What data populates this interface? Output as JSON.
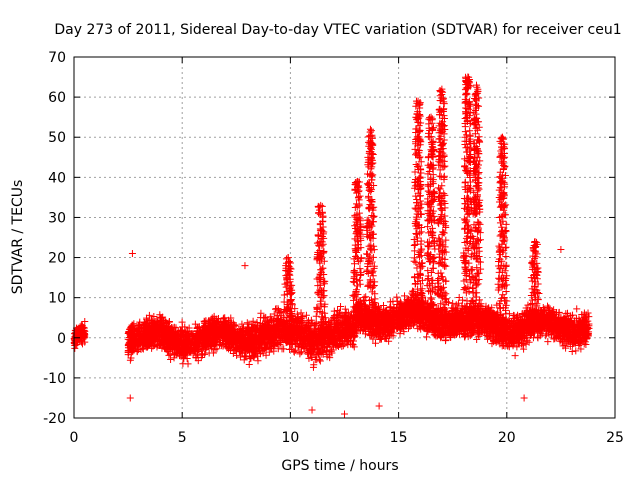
{
  "chart_data": {
    "type": "scatter",
    "title": "Day 273 of 2011, Sidereal Day-to-day VTEC variation (SDTVAR) for receiver ceu1",
    "xlabel": "GPS time / hours",
    "ylabel": "SDTVAR / TECUs",
    "xlim": [
      0,
      25
    ],
    "ylim": [
      -20,
      70
    ],
    "x_ticks": [
      0,
      5,
      10,
      15,
      20,
      25
    ],
    "y_ticks": [
      -20,
      -10,
      0,
      10,
      20,
      30,
      40,
      50,
      60,
      70
    ],
    "x_tick_labels": [
      "0",
      "5",
      "10",
      "15",
      "20",
      "25"
    ],
    "y_tick_labels": [
      "-20",
      "-10",
      "0",
      "10",
      "20",
      "30",
      "40",
      "50",
      "60",
      "70"
    ],
    "grid": true,
    "marker": "+",
    "marker_color": "#ff0000",
    "series": [
      {
        "name": "SDTVAR",
        "segments": [
          {
            "x_start": 0.0,
            "x_end": 0.5,
            "center": 0,
            "spread": 3
          },
          {
            "x_start": 2.5,
            "x_end": 8.0,
            "center": 0,
            "spread": 5
          },
          {
            "x_start": 8.0,
            "x_end": 13.0,
            "center": 1,
            "spread": 6
          },
          {
            "x_start": 13.0,
            "x_end": 18.0,
            "center": 5,
            "spread": 5
          },
          {
            "x_start": 18.0,
            "x_end": 23.8,
            "center": 3,
            "spread": 5
          }
        ],
        "spikes": [
          {
            "x": 11.4,
            "peak": 33
          },
          {
            "x": 13.1,
            "peak": 39
          },
          {
            "x": 13.7,
            "peak": 52
          },
          {
            "x": 15.9,
            "peak": 59
          },
          {
            "x": 16.5,
            "peak": 55
          },
          {
            "x": 17.0,
            "peak": 62
          },
          {
            "x": 18.2,
            "peak": 65
          },
          {
            "x": 18.6,
            "peak": 63
          },
          {
            "x": 19.8,
            "peak": 50
          },
          {
            "x": 21.3,
            "peak": 24
          },
          {
            "x": 9.9,
            "peak": 20
          }
        ],
        "outliers": [
          {
            "x": 2.7,
            "y": 21
          },
          {
            "x": 2.6,
            "y": -15
          },
          {
            "x": 7.9,
            "y": 18
          },
          {
            "x": 20.8,
            "y": -15
          },
          {
            "x": 22.5,
            "y": 22
          },
          {
            "x": 12.5,
            "y": -19
          },
          {
            "x": 14.1,
            "y": -17
          },
          {
            "x": 11.0,
            "y": -18
          }
        ]
      }
    ]
  }
}
